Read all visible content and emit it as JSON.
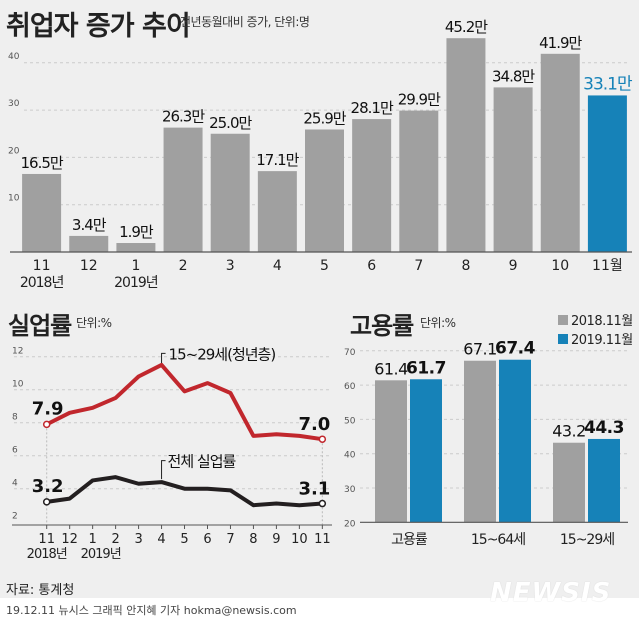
{
  "header": {
    "title": "취업자 증가 추이",
    "subtitle": "전년동월대비 증가, 단위:명"
  },
  "unemployment": {
    "title": "실업률",
    "unit": "단위:%"
  },
  "employment": {
    "title": "고용률",
    "unit": "단위:%"
  },
  "footer": {
    "source": "자료: 통계청",
    "credit": "19.12.11 뉴시스 그래픽 안지혜 기자 hokma@newsis.com",
    "logo": "NEWSIS"
  },
  "colors": {
    "bar": "#a0a0a0",
    "highlight": "#1682b8",
    "youth_line": "#c1272d",
    "total_line": "#231f20",
    "background": "#efefef"
  },
  "chart_data": [
    {
      "type": "bar",
      "title": "취업자 증가 추이",
      "subtitle": "전년동월대비 증가, 단위:명",
      "categories": [
        "11",
        "12",
        "1",
        "2",
        "3",
        "4",
        "5",
        "6",
        "7",
        "8",
        "9",
        "10",
        "11월"
      ],
      "year_labels": {
        "0": "2018년",
        "2": "2019년"
      },
      "values": [
        16.5,
        3.4,
        1.9,
        26.3,
        25.0,
        17.1,
        25.9,
        28.1,
        29.9,
        45.2,
        34.8,
        41.9,
        33.1
      ],
      "data_labels": [
        "16.5만",
        "3.4만",
        "1.9만",
        "26.3만",
        "25.0만",
        "17.1만",
        "25.9만",
        "28.1만",
        "29.9만",
        "45.2만",
        "34.8만",
        "41.9만",
        "33.1만"
      ],
      "highlight_index": 12,
      "yticks": [
        10,
        20,
        30,
        40
      ],
      "ylim": [
        0,
        48
      ],
      "grid": true
    },
    {
      "type": "line",
      "title": "실업률",
      "ylabel": "단위:%",
      "categories": [
        "11",
        "12",
        "1",
        "2",
        "3",
        "4",
        "5",
        "6",
        "7",
        "8",
        "9",
        "10",
        "11"
      ],
      "year_labels": {
        "0": "2018년",
        "3": "2019년"
      },
      "yticks": [
        2,
        4,
        6,
        8,
        10,
        12
      ],
      "ylim": [
        2,
        12.5
      ],
      "grid": true,
      "series": [
        {
          "name": "15~29세(청년층)",
          "values": [
            7.9,
            8.6,
            8.9,
            9.5,
            10.8,
            11.5,
            9.9,
            10.4,
            9.8,
            7.2,
            7.3,
            7.2,
            7.0
          ],
          "start_label": "7.9",
          "end_label": "7.0"
        },
        {
          "name": "전체 실업률",
          "values": [
            3.2,
            3.4,
            4.5,
            4.7,
            4.3,
            4.4,
            4.0,
            4.0,
            3.9,
            3.0,
            3.1,
            3.0,
            3.1
          ],
          "start_label": "3.2",
          "end_label": "3.1"
        }
      ]
    },
    {
      "type": "bar",
      "title": "고용률",
      "ylabel": "단위:%",
      "categories": [
        "고용률",
        "15~64세",
        "15~29세"
      ],
      "yticks": [
        20,
        30,
        40,
        50,
        60,
        70
      ],
      "ylim": [
        20,
        72
      ],
      "grid": true,
      "legend": "top-right",
      "series": [
        {
          "name": "2018.11월",
          "values": [
            61.4,
            67.1,
            43.2
          ],
          "labels": [
            "61.4",
            "67.1",
            "43.2"
          ]
        },
        {
          "name": "2019.11월",
          "values": [
            61.7,
            67.4,
            44.3
          ],
          "labels": [
            "61.7",
            "67.4",
            "44.3"
          ]
        }
      ]
    }
  ]
}
